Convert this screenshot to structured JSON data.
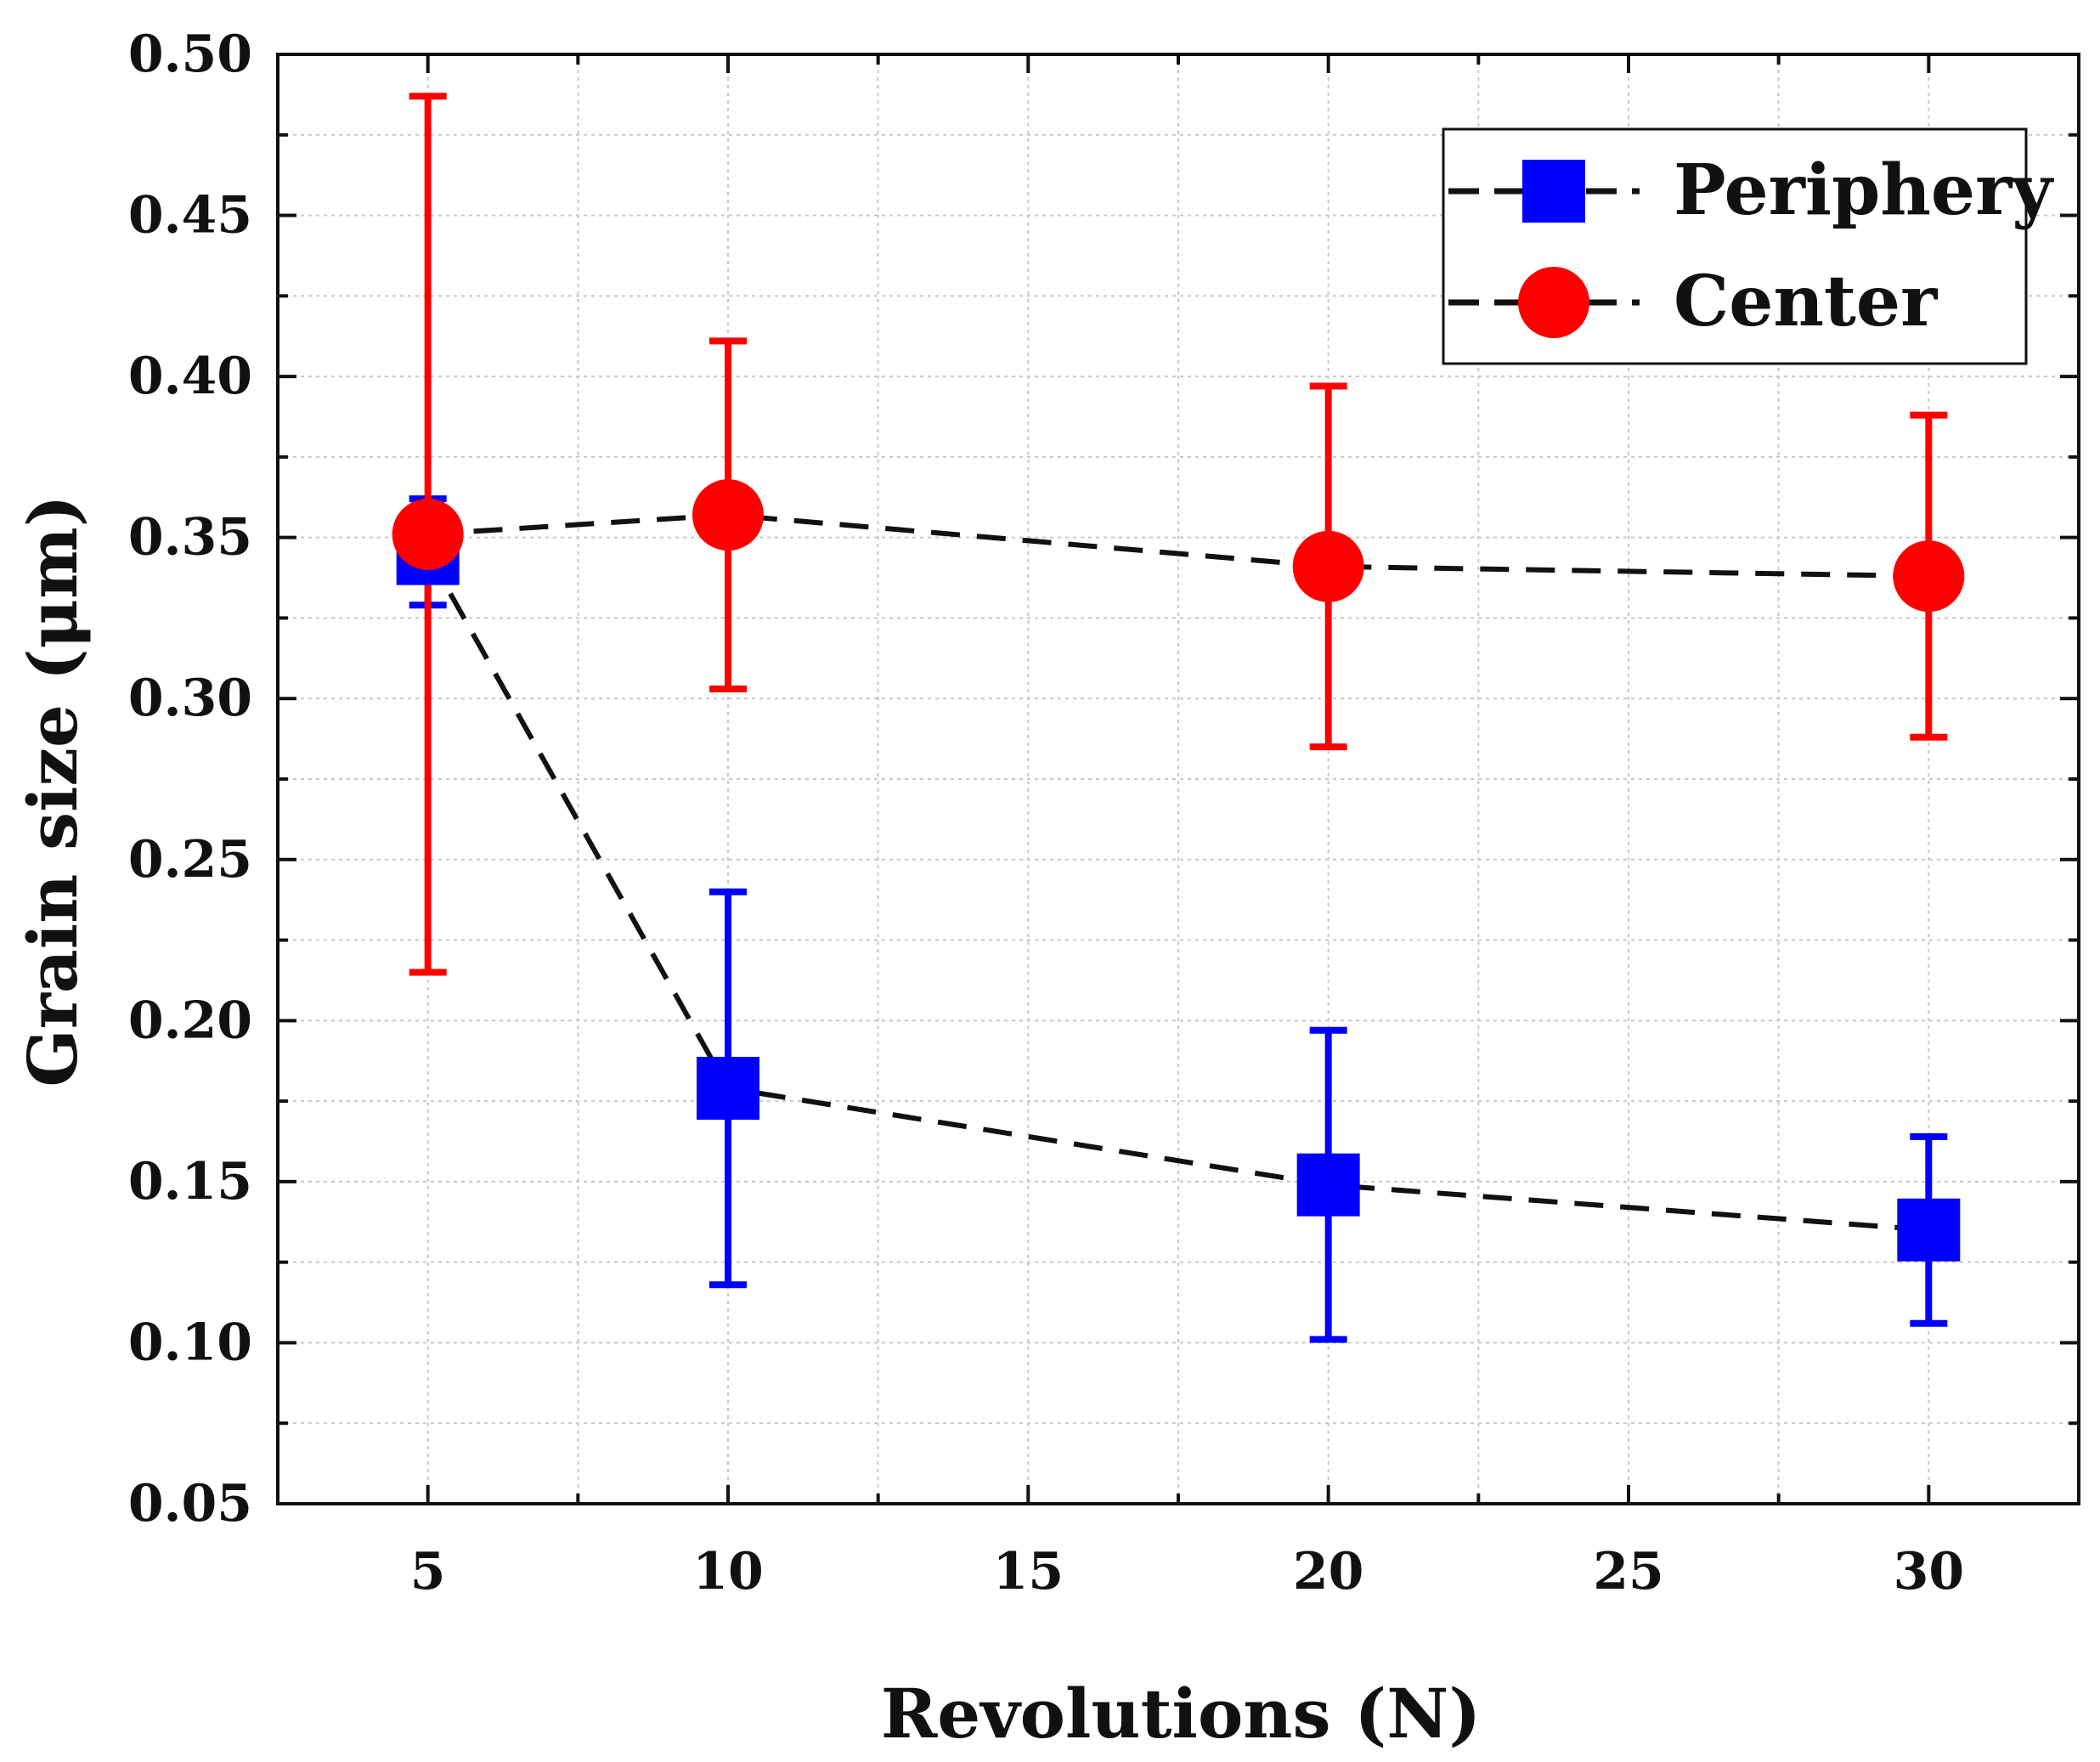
{
  "chart_data": {
    "type": "scatter",
    "title": "",
    "xlabel": "Revolutions (N)",
    "ylabel": "Grain size (μm)",
    "xlim": [
      2.5,
      32.5
    ],
    "ylim": [
      0.05,
      0.5
    ],
    "xticks": [
      5,
      10,
      15,
      20,
      25,
      30
    ],
    "xtick_labels": [
      "5",
      "10",
      "15",
      "20",
      "25",
      "30"
    ],
    "yticks": [
      0.05,
      0.1,
      0.15,
      0.2,
      0.25,
      0.3,
      0.35,
      0.4,
      0.45,
      0.5
    ],
    "ytick_labels": [
      "0.05",
      "0.10",
      "0.15",
      "0.20",
      "0.25",
      "0.30",
      "0.35",
      "0.40",
      "0.45",
      "0.50"
    ],
    "grid": true,
    "legend_position": "top-right",
    "series": [
      {
        "name": "Periphery",
        "color": "#0000ff",
        "marker": "square",
        "line": "dashed",
        "x": [
          5,
          10,
          20,
          30
        ],
        "y": [
          0.345,
          0.179,
          0.149,
          0.135
        ],
        "err_low": [
          0.329,
          0.118,
          0.101,
          0.106
        ],
        "err_high": [
          0.362,
          0.24,
          0.197,
          0.164
        ]
      },
      {
        "name": "Center",
        "color": "#ff0000",
        "marker": "circle",
        "line": "dashed",
        "x": [
          5,
          10,
          20,
          30
        ],
        "y": [
          0.351,
          0.357,
          0.341,
          0.338
        ],
        "err_low": [
          0.215,
          0.303,
          0.285,
          0.288
        ],
        "err_high": [
          0.487,
          0.411,
          0.397,
          0.388
        ]
      }
    ]
  }
}
